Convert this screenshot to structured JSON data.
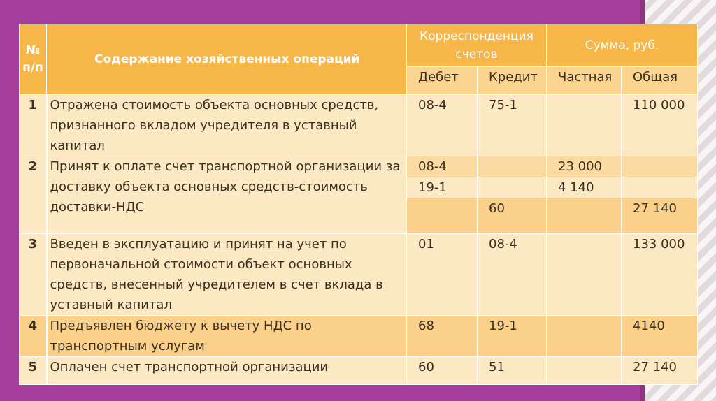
{
  "header": {
    "num": "№ п/п",
    "description": "Содержание хозяйственных операций",
    "correspondence": "Корреспонденция счетов",
    "sum": "Сумма, руб.",
    "debit": "Дебет",
    "credit": "Кредит",
    "partial": "Частная",
    "total": "Общая"
  },
  "rows": [
    {
      "num": "1",
      "description": "Отражена стоимость объекта основных средств, признанного вкладом учредителя в уставный капитал",
      "debit": "08-4",
      "credit": "75-1",
      "partial": "",
      "total": "110 000"
    },
    {
      "num": "2",
      "description": "Принят к оплате счет транспортной организации за доставку объекта основных средств-стоимость доставки-НДС",
      "sub": [
        {
          "debit": "08-4",
          "credit": "",
          "partial": "23 000",
          "total": ""
        },
        {
          "debit": "19-1",
          "credit": "",
          "partial": "4 140",
          "total": ""
        },
        {
          "debit": "",
          "credit": "60",
          "partial": "",
          "total": "27 140"
        }
      ]
    },
    {
      "num": "3",
      "description": "Введен в эксплуатацию и принят на учет по первоначальной стоимости объект основных средств, внесенный учредителем в счет вклада в уставный капитал",
      "debit": "01",
      "credit": "08-4",
      "partial": "",
      "total": "133 000"
    },
    {
      "num": "4",
      "description": "Предъявлен бюджету к вычету НДС по транспортным услугам",
      "debit": "68",
      "credit": "19-1",
      "partial": "",
      "total": "4140"
    },
    {
      "num": "5",
      "description": "Оплачен счет транспортной организации",
      "debit": "60",
      "credit": "51",
      "partial": "",
      "total": "27 140"
    }
  ]
}
